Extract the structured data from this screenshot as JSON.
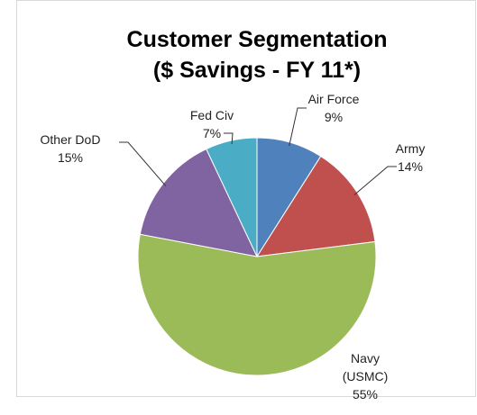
{
  "chart_data": {
    "type": "pie",
    "title": "Customer Segmentation",
    "subtitle": "($ Savings - FY 11*)",
    "categories": [
      "Air Force",
      "Army",
      "Navy (USMC)",
      "Other DoD",
      "Fed Civ"
    ],
    "values": [
      9,
      14,
      55,
      15,
      7
    ],
    "value_labels": [
      "9%",
      "14%",
      "55%",
      "15%",
      "7%"
    ],
    "colors": [
      "#4f81bd",
      "#c0504d",
      "#9bbb59",
      "#8064a2",
      "#4bacc6"
    ]
  }
}
